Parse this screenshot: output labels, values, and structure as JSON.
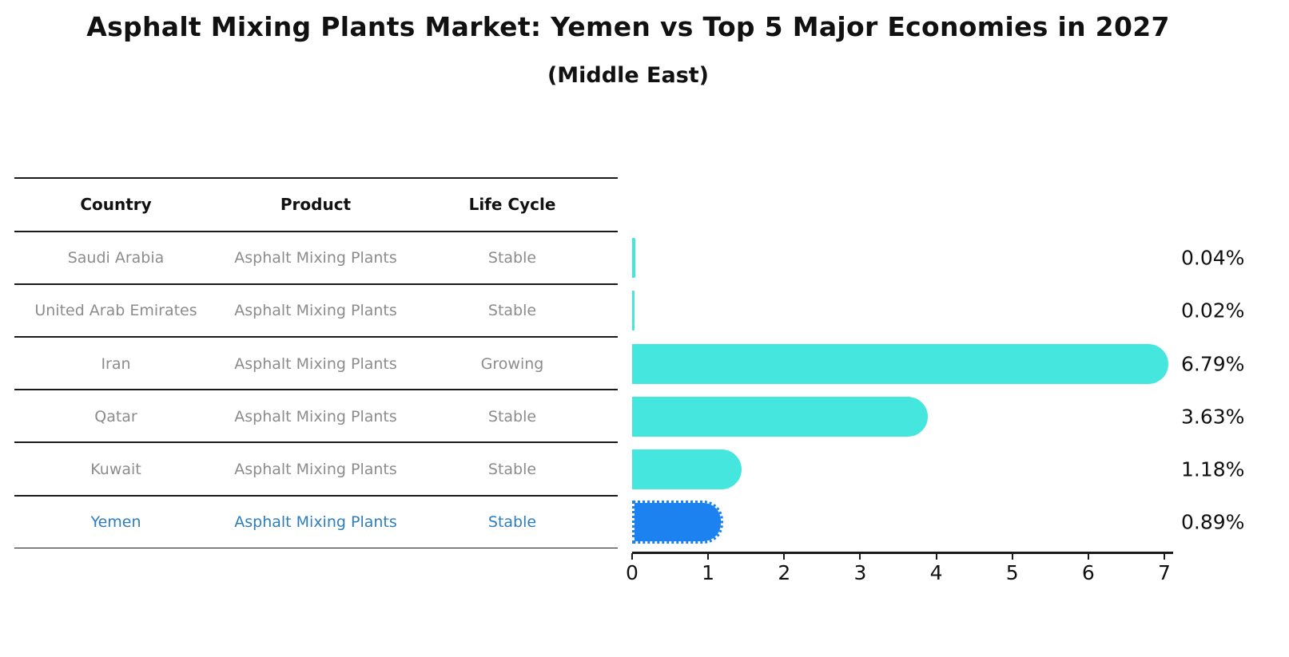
{
  "title": "Asphalt Mixing Plants Market: Yemen vs Top 5 Major Economies in 2027",
  "subtitle": "(Middle East)",
  "table": {
    "headers": [
      "Country",
      "Product",
      "Life Cycle"
    ],
    "rows": [
      {
        "country": "Saudi Arabia",
        "product": "Asphalt Mixing Plants",
        "life_cycle": "Stable",
        "highlighted": false
      },
      {
        "country": "United Arab Emirates",
        "product": "Asphalt Mixing Plants",
        "life_cycle": "Stable",
        "highlighted": false
      },
      {
        "country": "Iran",
        "product": "Asphalt Mixing Plants",
        "life_cycle": "Growing",
        "highlighted": false
      },
      {
        "country": "Qatar",
        "product": "Asphalt Mixing Plants",
        "life_cycle": "Stable",
        "highlighted": false
      },
      {
        "country": "Kuwait",
        "product": "Asphalt Mixing Plants",
        "life_cycle": "Stable",
        "highlighted": false
      },
      {
        "country": "Yemen",
        "product": "Asphalt Mixing Plants",
        "life_cycle": "Stable",
        "highlighted": true
      }
    ]
  },
  "chart_data": {
    "type": "bar",
    "orientation": "horizontal",
    "categories": [
      "Saudi Arabia",
      "United Arab Emirates",
      "Iran",
      "Qatar",
      "Kuwait",
      "Yemen"
    ],
    "values": [
      0.04,
      0.02,
      6.79,
      3.63,
      1.18,
      0.89
    ],
    "value_labels": [
      "0.04%",
      "0.02%",
      "6.79%",
      "3.63%",
      "1.18%",
      "0.89%"
    ],
    "x_ticks": [
      0,
      1,
      2,
      3,
      4,
      5,
      6,
      7
    ],
    "xlim": [
      0,
      7.1
    ],
    "grid": false,
    "legend": false,
    "highlight_category": "Yemen",
    "colors": {
      "bar": "#45e6de",
      "highlight_bar": "#1b82f0",
      "highlight_text": "#2e7ebd",
      "row_text": "#8c8c8c",
      "axis_text": "#111111"
    }
  }
}
